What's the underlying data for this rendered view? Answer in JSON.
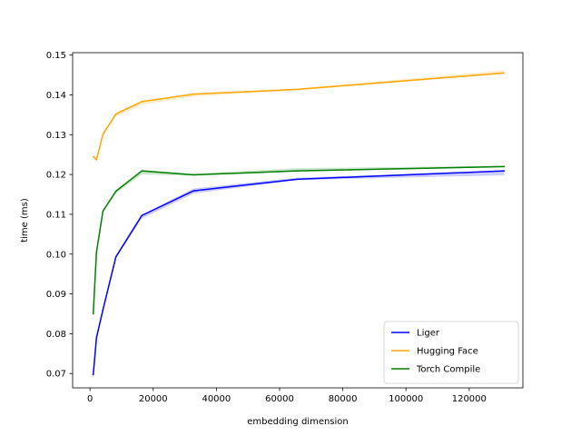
{
  "chart_data": {
    "type": "line",
    "title": "",
    "xlabel": "embedding dimension",
    "ylabel": "time (ms)",
    "xlim": [
      -5500,
      137000
    ],
    "ylim": [
      0.0664,
      0.1506
    ],
    "x_ticks": [
      0,
      20000,
      40000,
      60000,
      80000,
      100000,
      120000
    ],
    "x_tick_labels": [
      "0",
      "20000",
      "40000",
      "60000",
      "80000",
      "100000",
      "120000"
    ],
    "y_ticks": [
      0.07,
      0.08,
      0.09,
      0.1,
      0.11,
      0.12,
      0.13,
      0.14,
      0.15
    ],
    "y_tick_labels": [
      "0.07",
      "0.08",
      "0.09",
      "0.10",
      "0.11",
      "0.12",
      "0.13",
      "0.14",
      "0.15"
    ],
    "grid": false,
    "legend_position": "lower right",
    "x": [
      1024,
      2048,
      4096,
      8192,
      16384,
      32768,
      65536,
      131072
    ],
    "series": [
      {
        "name": "Liger",
        "color": "#0000ff",
        "values": [
          0.0697,
          0.079,
          0.086,
          0.0993,
          0.1097,
          0.1159,
          0.1188,
          0.1209
        ],
        "band_lower": [
          0.0697,
          0.0788,
          0.0858,
          0.099,
          0.1089,
          0.1152,
          0.1186,
          0.1198
        ],
        "band_upper": [
          0.0697,
          0.0792,
          0.0862,
          0.0996,
          0.1099,
          0.1165,
          0.1192,
          0.121
        ]
      },
      {
        "name": "Hugging Face",
        "color": "#ffa500",
        "values": [
          0.1245,
          0.1237,
          0.1301,
          0.1352,
          0.1383,
          0.1402,
          0.1414,
          0.1455
        ],
        "band_lower": [
          0.1243,
          0.1235,
          0.1298,
          0.1345,
          0.1375,
          0.1396,
          0.1411,
          0.1453
        ],
        "band_upper": [
          0.1247,
          0.1239,
          0.1303,
          0.1354,
          0.1385,
          0.1403,
          0.1416,
          0.1462
        ]
      },
      {
        "name": "Torch Compile",
        "color": "#008000",
        "values": [
          0.085,
          0.1005,
          0.1108,
          0.1158,
          0.1209,
          0.1199,
          0.1209,
          0.122
        ],
        "band_lower": [
          0.085,
          0.1003,
          0.1106,
          0.1153,
          0.12,
          0.1197,
          0.1207,
          0.1218
        ],
        "band_upper": [
          0.085,
          0.1007,
          0.111,
          0.116,
          0.1211,
          0.1202,
          0.1216,
          0.1222
        ]
      }
    ]
  }
}
